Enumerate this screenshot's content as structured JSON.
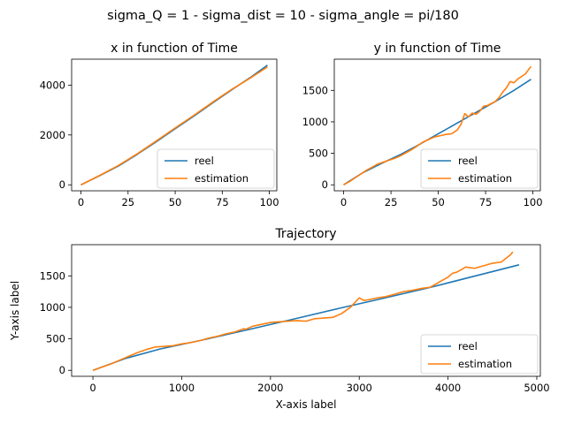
{
  "suptitle": "sigma_Q = 1 - sigma_dist = 10 - sigma_angle = pi/180",
  "colors": {
    "reel": "#1f77b4",
    "estimation": "#ff7f0e"
  },
  "chart_data": [
    {
      "type": "line",
      "title": "x in function of Time",
      "xlabel": "",
      "ylabel": "",
      "xlim": [
        -4.95,
        103.95
      ],
      "ylim": [
        -240,
        5040
      ],
      "xticks": [
        0,
        25,
        50,
        75,
        100
      ],
      "yticks": [
        0,
        2000,
        4000
      ],
      "legend": "lower-right",
      "series": [
        {
          "name": "reel",
          "x": [
            0,
            10,
            20,
            30,
            40,
            50,
            60,
            70,
            80,
            90,
            99
          ],
          "y": [
            0,
            370,
            760,
            1230,
            1730,
            2250,
            2760,
            3290,
            3810,
            4310,
            4800
          ]
        },
        {
          "name": "estimation",
          "x": [
            0,
            10,
            20,
            30,
            40,
            50,
            60,
            70,
            80,
            90,
            99
          ],
          "y": [
            0,
            380,
            780,
            1250,
            1760,
            2280,
            2790,
            3320,
            3830,
            4290,
            4730
          ]
        }
      ]
    },
    {
      "type": "line",
      "title": "y in function of Time",
      "xlabel": "",
      "ylabel": "",
      "xlim": [
        -4.95,
        103.95
      ],
      "ylim": [
        -95,
        1995
      ],
      "xticks": [
        0,
        25,
        50,
        75,
        100
      ],
      "yticks": [
        0,
        500,
        1000,
        1500
      ],
      "legend": "lower-right",
      "series": [
        {
          "name": "reel",
          "x": [
            0,
            10,
            20,
            30,
            40,
            50,
            60,
            70,
            80,
            90,
            99
          ],
          "y": [
            0,
            190,
            340,
            480,
            640,
            810,
            980,
            1150,
            1320,
            1500,
            1675
          ]
        },
        {
          "name": "estimation",
          "x": [
            0,
            3,
            6,
            9,
            12,
            15,
            18,
            21,
            24,
            27,
            30,
            33,
            36,
            39,
            42,
            45,
            48,
            51,
            54,
            57,
            60,
            62,
            64,
            66,
            68,
            70,
            72,
            74,
            76,
            78,
            80,
            82,
            84,
            86,
            88,
            90,
            92,
            94,
            96,
            98,
            99
          ],
          "y": [
            0,
            50,
            110,
            170,
            230,
            280,
            330,
            360,
            390,
            420,
            460,
            510,
            560,
            620,
            680,
            720,
            760,
            780,
            800,
            810,
            870,
            960,
            1130,
            1080,
            1140,
            1120,
            1170,
            1250,
            1260,
            1290,
            1320,
            1380,
            1470,
            1540,
            1640,
            1620,
            1680,
            1720,
            1760,
            1840,
            1880
          ]
        }
      ]
    },
    {
      "type": "line",
      "title": "Trajectory",
      "xlabel": "X-axis label",
      "ylabel": "Y-axis label",
      "xlim": [
        -240,
        5040
      ],
      "ylim": [
        -95,
        1995
      ],
      "xticks": [
        0,
        1000,
        2000,
        3000,
        4000,
        5000
      ],
      "yticks": [
        0,
        500,
        1000,
        1500
      ],
      "legend": "lower-right",
      "series": [
        {
          "name": "reel",
          "x": [
            0,
            370,
            760,
            1230,
            1730,
            2250,
            2760,
            3290,
            3810,
            4310,
            4800
          ],
          "y": [
            0,
            190,
            340,
            480,
            640,
            810,
            980,
            1150,
            1320,
            1500,
            1675
          ]
        },
        {
          "name": "estimation",
          "x": [
            0,
            100,
            200,
            300,
            400,
            500,
            600,
            700,
            800,
            900,
            1000,
            1100,
            1200,
            1300,
            1400,
            1500,
            1600,
            1700,
            1720,
            1800,
            1900,
            2000,
            2100,
            2200,
            2300,
            2400,
            2500,
            2600,
            2700,
            2800,
            2900,
            3000,
            3050,
            3100,
            3200,
            3300,
            3400,
            3500,
            3600,
            3700,
            3800,
            3900,
            4000,
            4050,
            4100,
            4200,
            4300,
            4400,
            4500,
            4600,
            4700,
            4730
          ],
          "y": [
            0,
            50,
            100,
            160,
            220,
            280,
            330,
            370,
            380,
            390,
            420,
            440,
            470,
            510,
            540,
            580,
            610,
            660,
            650,
            700,
            730,
            760,
            770,
            780,
            790,
            780,
            820,
            830,
            840,
            900,
            1000,
            1150,
            1110,
            1120,
            1150,
            1170,
            1210,
            1250,
            1270,
            1300,
            1320,
            1400,
            1480,
            1540,
            1560,
            1640,
            1620,
            1660,
            1700,
            1720,
            1830,
            1880
          ]
        }
      ]
    }
  ]
}
